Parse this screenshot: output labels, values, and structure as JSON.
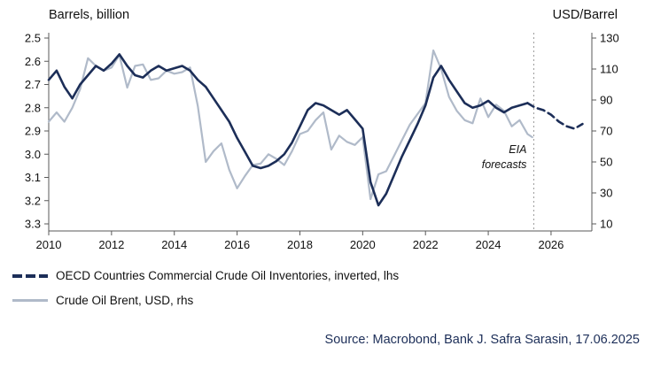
{
  "source": "Source: Macrobond, Bank J. Safra Sarasin, 17.06.2025",
  "colors": {
    "navy": "#1c2e58",
    "gray_line": "#b0bac9",
    "axis": "#595959",
    "forecast_line": "#9a9a9a",
    "annotation_text": "#333333",
    "source_text": "#1c2e58"
  },
  "chart_data": {
    "type": "line",
    "title": "",
    "left_axis": {
      "title": "Barrels, billion",
      "inverted": true,
      "ticks": [
        2.5,
        2.6,
        2.7,
        2.8,
        2.9,
        3.0,
        3.1,
        3.2,
        3.3
      ],
      "tick_labels": [
        "2.5",
        "2.6",
        "2.7",
        "2.8",
        "2.9",
        "3.0",
        "3.1",
        "3.2",
        "3.3"
      ]
    },
    "right_axis": {
      "title": "USD/Barrel",
      "ticks": [
        130,
        110,
        90,
        70,
        50,
        30,
        10
      ],
      "tick_labels": [
        "130",
        "110",
        "90",
        "70",
        "50",
        "30",
        "10"
      ]
    },
    "x_axis": {
      "min": 2010,
      "max": 2027.3,
      "ticks": [
        2010,
        2012,
        2014,
        2016,
        2018,
        2020,
        2022,
        2024,
        2026
      ],
      "tick_labels": [
        "2010",
        "2012",
        "2014",
        "2016",
        "2018",
        "2020",
        "2022",
        "2024",
        "2026"
      ]
    },
    "forecast_line_x": 2025.45,
    "annotation": {
      "lines": [
        "EIA",
        "forecasts"
      ],
      "x": 2025.45
    },
    "series": [
      {
        "id": "inventories",
        "name": "OECD Countries Commercial Crude Oil Inventories, inverted, lhs",
        "axis": "left",
        "color": "#1c2e58",
        "width": 2.6,
        "forecast_dashed": true,
        "x": [
          2010,
          2010.25,
          2010.5,
          2010.75,
          2011,
          2011.25,
          2011.5,
          2011.75,
          2012,
          2012.25,
          2012.5,
          2012.75,
          2013,
          2013.25,
          2013.5,
          2013.75,
          2014,
          2014.25,
          2014.5,
          2014.75,
          2015,
          2015.25,
          2015.5,
          2015.75,
          2016,
          2016.25,
          2016.5,
          2016.75,
          2017,
          2017.25,
          2017.5,
          2017.75,
          2018,
          2018.25,
          2018.5,
          2018.75,
          2019,
          2019.25,
          2019.5,
          2019.75,
          2020,
          2020.25,
          2020.5,
          2020.75,
          2021,
          2021.25,
          2021.5,
          2021.75,
          2022,
          2022.25,
          2022.5,
          2022.75,
          2023,
          2023.25,
          2023.5,
          2023.75,
          2024,
          2024.25,
          2024.5,
          2024.75,
          2025,
          2025.25,
          2025.5,
          2025.75,
          2026,
          2026.25,
          2026.5,
          2026.75,
          2027
        ],
        "y": [
          2.68,
          2.64,
          2.71,
          2.76,
          2.7,
          2.66,
          2.62,
          2.64,
          2.61,
          2.57,
          2.62,
          2.66,
          2.67,
          2.64,
          2.62,
          2.64,
          2.63,
          2.62,
          2.64,
          2.68,
          2.71,
          2.76,
          2.81,
          2.86,
          2.93,
          2.99,
          3.05,
          3.06,
          3.05,
          3.03,
          3.0,
          2.95,
          2.88,
          2.81,
          2.78,
          2.79,
          2.81,
          2.83,
          2.81,
          2.85,
          2.89,
          3.12,
          3.22,
          3.17,
          3.09,
          3.01,
          2.94,
          2.87,
          2.79,
          2.67,
          2.62,
          2.68,
          2.73,
          2.78,
          2.8,
          2.79,
          2.77,
          2.8,
          2.82,
          2.8,
          2.79,
          2.78,
          2.8,
          2.81,
          2.83,
          2.86,
          2.88,
          2.89,
          2.87
        ]
      },
      {
        "id": "brent",
        "name": "Crude Oil Brent, USD, rhs",
        "axis": "right",
        "color": "#b0bac9",
        "width": 2.2,
        "forecast_dashed": false,
        "x": [
          2010,
          2010.25,
          2010.5,
          2010.75,
          2011,
          2011.25,
          2011.5,
          2011.75,
          2012,
          2012.25,
          2012.5,
          2012.75,
          2013,
          2013.25,
          2013.5,
          2013.75,
          2014,
          2014.25,
          2014.5,
          2014.75,
          2015,
          2015.25,
          2015.5,
          2015.75,
          2016,
          2016.25,
          2016.5,
          2016.75,
          2017,
          2017.25,
          2017.5,
          2017.75,
          2018,
          2018.25,
          2018.5,
          2018.75,
          2019,
          2019.25,
          2019.5,
          2019.75,
          2020,
          2020.25,
          2020.5,
          2020.75,
          2021,
          2021.25,
          2021.5,
          2021.75,
          2022,
          2022.25,
          2022.5,
          2022.75,
          2023,
          2023.25,
          2023.5,
          2023.75,
          2024,
          2024.25,
          2024.5,
          2024.75,
          2025,
          2025.25,
          2025.4
        ],
        "y": [
          76,
          82,
          76,
          85,
          97,
          117,
          112,
          109,
          111,
          119,
          98,
          112,
          113,
          103,
          104,
          109,
          107,
          108,
          111,
          86,
          50,
          57,
          62,
          45,
          33,
          41,
          48,
          49,
          55,
          52,
          48,
          57,
          68,
          70,
          77,
          82,
          58,
          67,
          63,
          61,
          66,
          26,
          42,
          44,
          54,
          64,
          74,
          81,
          88,
          122,
          110,
          92,
          83,
          77,
          75,
          91,
          79,
          87,
          83,
          73,
          77,
          68,
          66
        ]
      }
    ]
  }
}
